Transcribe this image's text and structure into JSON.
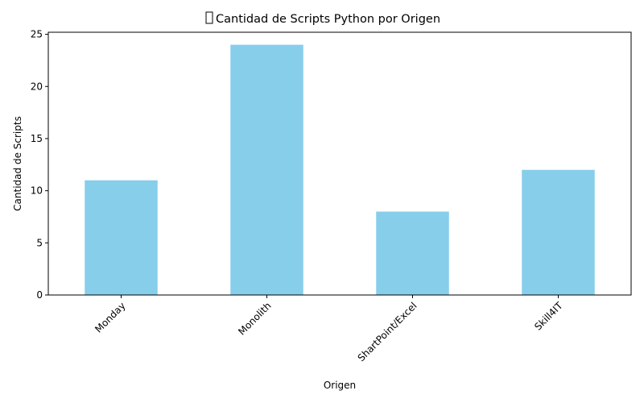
{
  "chart_data": {
    "type": "bar",
    "title": "Cantidad de Scripts Python por Origen",
    "xlabel": "Origen",
    "ylabel": "Cantidad de Scripts",
    "categories": [
      "Monday",
      "Monolith",
      "ShartPoint/Excel",
      "Skill4IT"
    ],
    "values": [
      11,
      24,
      8,
      12
    ],
    "ylim": [
      0,
      25.2
    ],
    "yticks": [
      0,
      5,
      10,
      15,
      20,
      25
    ],
    "bar_color": "#87ceeb",
    "grid": false,
    "legend": "none"
  }
}
